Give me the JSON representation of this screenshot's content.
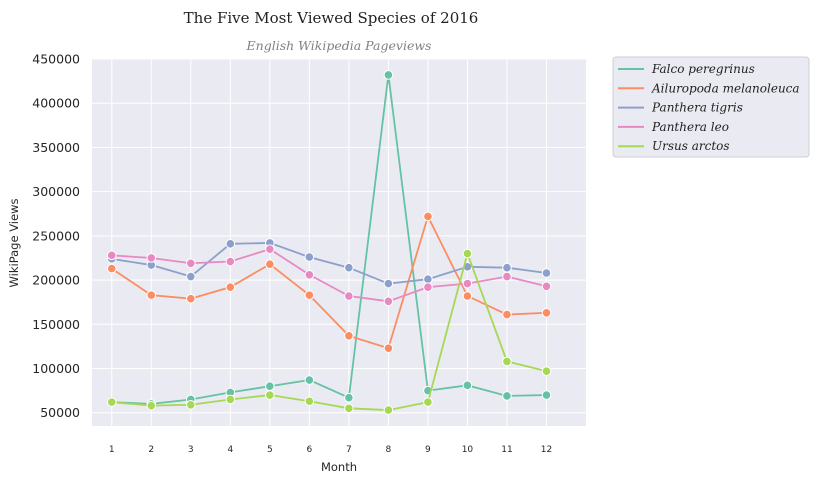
{
  "chart_data": {
    "type": "line",
    "title": "The Five Most Viewed Species of 2016",
    "subtitle": "English Wikipedia Pageviews",
    "xlabel": "Month",
    "ylabel": "WikiPage Views",
    "x": [
      1,
      2,
      3,
      4,
      5,
      6,
      7,
      8,
      9,
      10,
      11,
      12
    ],
    "xlim": [
      0.5,
      13
    ],
    "ylim": [
      35000,
      450000
    ],
    "yticks": [
      50000,
      100000,
      150000,
      200000,
      250000,
      300000,
      350000,
      400000,
      450000
    ],
    "grid": true,
    "legend_position": "outside-right",
    "series": [
      {
        "name": "Falco peregrinus",
        "color": "#66c2a5",
        "values": [
          62000,
          60000,
          65000,
          73000,
          80000,
          87000,
          67000,
          432000,
          75000,
          81000,
          69000,
          70000
        ]
      },
      {
        "name": "Ailuropoda melanoleuca",
        "color": "#fc8d62",
        "values": [
          213000,
          183000,
          179000,
          192000,
          218000,
          183000,
          137000,
          123000,
          272000,
          182000,
          161000,
          163000
        ]
      },
      {
        "name": "Panthera tigris",
        "color": "#8da0cb",
        "values": [
          224000,
          217000,
          204000,
          241000,
          242000,
          226000,
          214000,
          196000,
          201000,
          215000,
          214000,
          208000
        ]
      },
      {
        "name": "Panthera leo",
        "color": "#e78ac3",
        "values": [
          228000,
          225000,
          219000,
          221000,
          235000,
          206000,
          182000,
          176000,
          192000,
          196000,
          204000,
          193000
        ]
      },
      {
        "name": "Ursus arctos",
        "color": "#a6d854",
        "values": [
          62000,
          58000,
          59000,
          65000,
          70000,
          63000,
          55000,
          53000,
          62000,
          230000,
          108000,
          97000
        ]
      }
    ]
  }
}
